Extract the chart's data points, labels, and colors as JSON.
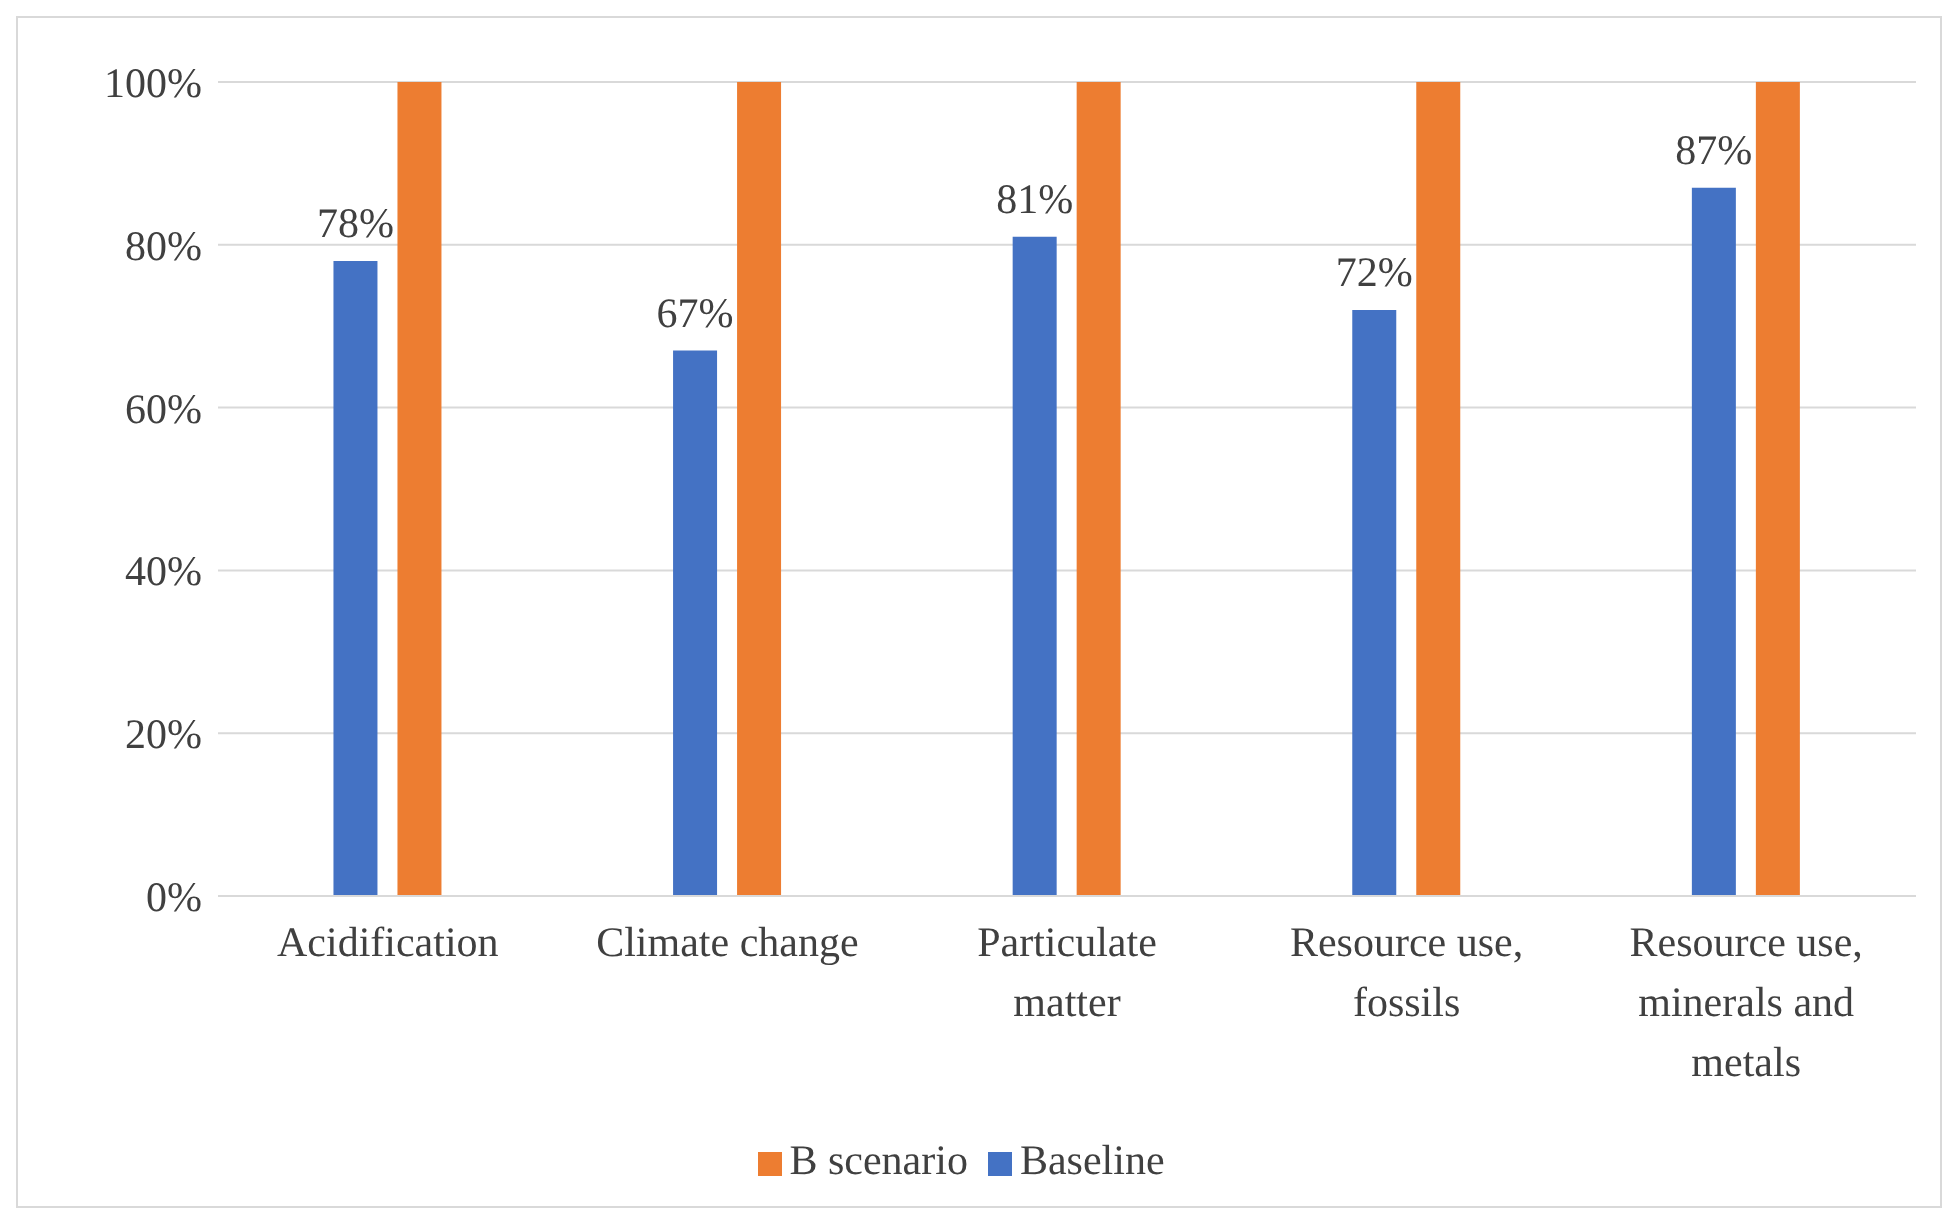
{
  "chart_data": {
    "type": "bar",
    "categories": [
      "Acidification",
      "Climate change",
      "Particulate matter",
      "Resource use, fossils",
      "Resource use, minerals and metals"
    ],
    "series": [
      {
        "name": "Baseline",
        "color": "#4472c4",
        "values": [
          78,
          67,
          81,
          72,
          87
        ],
        "value_labels": [
          "78%",
          "67%",
          "81%",
          "72%",
          "87%"
        ]
      },
      {
        "name": "B scenario",
        "color": "#ed7d31",
        "values": [
          100,
          100,
          100,
          100,
          100
        ]
      }
    ],
    "ylim": [
      0,
      100
    ],
    "yticks": [
      {
        "value": 0,
        "label": "0%"
      },
      {
        "value": 20,
        "label": "20%"
      },
      {
        "value": 40,
        "label": "40%"
      },
      {
        "value": 60,
        "label": "60%"
      },
      {
        "value": 80,
        "label": "80%"
      },
      {
        "value": 100,
        "label": "100%"
      }
    ],
    "grid": "y",
    "legend": "bottom"
  }
}
